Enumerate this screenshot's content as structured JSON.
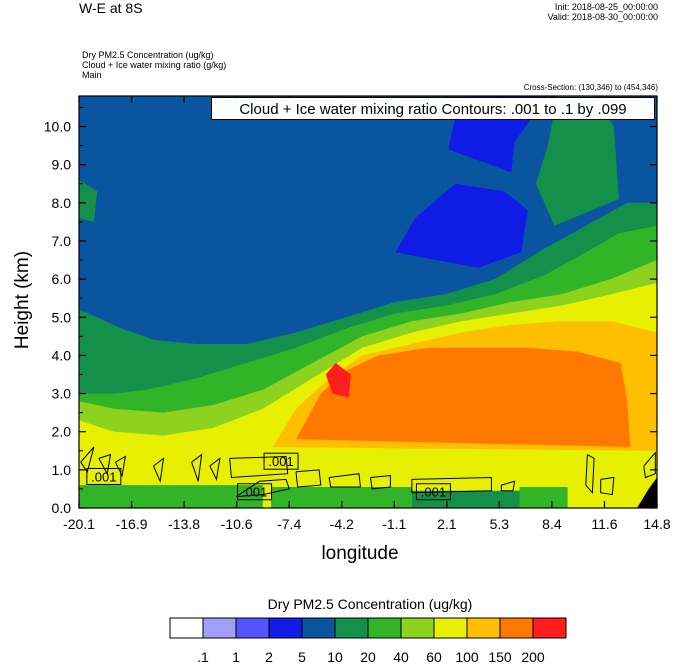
{
  "header": {
    "title": "W-E at 8S",
    "init": "Init: 2018-08-25_00:00:00",
    "valid": "Valid: 2018-08-30_00:00:00",
    "fields": [
      "Dry PM2.5 Concentration   (ug/kg)",
      "Cloud + Ice water mixing ratio   (g/kg)",
      "Main"
    ],
    "cross_section": "Cross-Section: (130,346) to (454,346)"
  },
  "chart_data": {
    "type": "heatmap",
    "title": "W-E at 8S",
    "xlabel": "longitude",
    "ylabel": "Height (km)",
    "contour_annotation": "Cloud + Ice water mixing ratio Contours: .001 to .1 by .099",
    "xlim": [
      -20.1,
      14.8
    ],
    "ylim": [
      0,
      10.8
    ],
    "x_ticks": [
      "-20.1",
      "-16.9",
      "-13.8",
      "-10.6",
      "-7.4",
      "-4.2",
      "-1.1",
      "2.1",
      "5.3",
      "8.4",
      "11.6",
      "14.8"
    ],
    "y_ticks": [
      "0.0",
      "1.0",
      "2.0",
      "3.0",
      "4.0",
      "5.0",
      "6.0",
      "7.0",
      "8.0",
      "9.0",
      "10.0"
    ],
    "y_tick_values": [
      0,
      1,
      2,
      3,
      4,
      5,
      6,
      7,
      8,
      9,
      10
    ],
    "colorbar": {
      "title": "Dry PM2.5 Concentration  (ug/kg)",
      "labels": [
        ".1",
        "1",
        "2",
        "5",
        "10",
        "20",
        "40",
        "60",
        "100",
        "150",
        "200"
      ],
      "colors": [
        "#ffffff",
        "#a0a0f8",
        "#5555ff",
        "#0f1ce6",
        "#0a55a0",
        "#15904a",
        "#32b428",
        "#8cd21e",
        "#e6f000",
        "#ffbe00",
        "#ff7800",
        "#ff1e1e"
      ]
    },
    "regions": [
      {
        "level": "5",
        "points": [
          [
            -20.1,
            0
          ],
          [
            14.8,
            0
          ],
          [
            14.8,
            10.8
          ],
          [
            -20.1,
            10.8
          ]
        ]
      },
      {
        "level": "10",
        "points": [
          [
            -20.1,
            0
          ],
          [
            14.8,
            0
          ],
          [
            14.8,
            8.0
          ],
          [
            13,
            8.0
          ],
          [
            10.5,
            7.4
          ],
          [
            8,
            6.8
          ],
          [
            5,
            6.0
          ],
          [
            2,
            5.6
          ],
          [
            -1,
            5.4
          ],
          [
            -4,
            5.0
          ],
          [
            -7,
            4.6
          ],
          [
            -10,
            4.3
          ],
          [
            -13,
            4.3
          ],
          [
            -15.5,
            4.4
          ],
          [
            -17.5,
            4.7
          ],
          [
            -19,
            5.0
          ],
          [
            -20.1,
            5.2
          ]
        ]
      },
      {
        "level": "10",
        "points": [
          [
            -20.1,
            7.6
          ],
          [
            -19.2,
            7.5
          ],
          [
            -19.0,
            8.3
          ],
          [
            -20.1,
            8.6
          ]
        ]
      },
      {
        "level": "10",
        "points": [
          [
            8.6,
            7.4
          ],
          [
            12.5,
            8.1
          ],
          [
            12.2,
            10.0
          ],
          [
            11.0,
            10.8
          ],
          [
            8.8,
            10.8
          ],
          [
            8.2,
            9.5
          ],
          [
            7.5,
            8.5
          ]
        ]
      },
      {
        "level": "2",
        "points": [
          [
            2.2,
            9.4
          ],
          [
            6.0,
            8.8
          ],
          [
            6.2,
            9.6
          ],
          [
            8.2,
            10.8
          ],
          [
            3.2,
            10.8
          ],
          [
            2.6,
            10.2
          ]
        ]
      },
      {
        "level": "2",
        "points": [
          [
            -1.0,
            6.7
          ],
          [
            4.0,
            6.3
          ],
          [
            6.6,
            6.7
          ],
          [
            7.0,
            7.8
          ],
          [
            5.6,
            8.3
          ],
          [
            2.6,
            8.5
          ],
          [
            0.2,
            7.6
          ]
        ]
      },
      {
        "level": "20",
        "points": [
          [
            -20.1,
            0
          ],
          [
            14.8,
            0
          ],
          [
            14.8,
            7.4
          ],
          [
            12.5,
            7.2
          ],
          [
            10.5,
            6.7
          ],
          [
            8,
            6.1
          ],
          [
            5,
            5.6
          ],
          [
            2,
            5.3
          ],
          [
            -1,
            5.1
          ],
          [
            -4,
            4.7
          ],
          [
            -7,
            4.2
          ],
          [
            -10,
            3.8
          ],
          [
            -13,
            3.4
          ],
          [
            -16,
            3.1
          ],
          [
            -18,
            3.0
          ],
          [
            -20.1,
            3.0
          ]
        ]
      },
      {
        "level": "40",
        "points": [
          [
            -20.1,
            0
          ],
          [
            14.8,
            0
          ],
          [
            14.8,
            6.5
          ],
          [
            12,
            6.0
          ],
          [
            9,
            5.6
          ],
          [
            6,
            5.4
          ],
          [
            3,
            5.1
          ],
          [
            0,
            4.9
          ],
          [
            -3,
            4.5
          ],
          [
            -6,
            3.8
          ],
          [
            -9,
            3.1
          ],
          [
            -12,
            2.7
          ],
          [
            -15,
            2.5
          ],
          [
            -18,
            2.6
          ],
          [
            -20.1,
            2.8
          ]
        ]
      },
      {
        "level": "60",
        "points": [
          [
            -20.1,
            0
          ],
          [
            14.8,
            0
          ],
          [
            14.8,
            5.9
          ],
          [
            12,
            5.6
          ],
          [
            9,
            5.3
          ],
          [
            6,
            5.1
          ],
          [
            3,
            4.9
          ],
          [
            0,
            4.6
          ],
          [
            -3,
            4.2
          ],
          [
            -6,
            3.4
          ],
          [
            -9,
            2.6
          ],
          [
            -12,
            2.1
          ],
          [
            -15,
            1.9
          ],
          [
            -18,
            2.0
          ],
          [
            -20.1,
            2.3
          ]
        ]
      },
      {
        "level": "100",
        "points": [
          [
            -8.4,
            1.6
          ],
          [
            14.8,
            1.5
          ],
          [
            14.8,
            4.6
          ],
          [
            12,
            4.9
          ],
          [
            9,
            4.9
          ],
          [
            6,
            4.8
          ],
          [
            3,
            4.6
          ],
          [
            0,
            4.3
          ],
          [
            -3,
            4.0
          ],
          [
            -5,
            3.4
          ],
          [
            -7,
            2.6
          ]
        ]
      },
      {
        "level": "150",
        "points": [
          [
            -7.0,
            1.8
          ],
          [
            13.2,
            1.6
          ],
          [
            13.0,
            2.8
          ],
          [
            12.6,
            3.8
          ],
          [
            10,
            4.1
          ],
          [
            7,
            4.2
          ],
          [
            4,
            4.2
          ],
          [
            1,
            4.2
          ],
          [
            -2,
            4.0
          ],
          [
            -4,
            3.6
          ],
          [
            -5.5,
            3.0
          ]
        ]
      },
      {
        "level": "200",
        "points": [
          [
            -4.8,
            3.0
          ],
          [
            -3.8,
            2.9
          ],
          [
            -3.7,
            3.5
          ],
          [
            -4.6,
            3.8
          ],
          [
            -5.2,
            3.5
          ]
        ]
      },
      {
        "level": "20",
        "points": [
          [
            -20.1,
            0
          ],
          [
            -9.0,
            0
          ],
          [
            -9.0,
            0.6
          ],
          [
            -14,
            0.6
          ],
          [
            -20.1,
            0.6
          ]
        ]
      },
      {
        "level": "20",
        "points": [
          [
            -8.5,
            0
          ],
          [
            0.0,
            0
          ],
          [
            0.0,
            0.55
          ],
          [
            -8.5,
            0.55
          ]
        ]
      },
      {
        "level": "10",
        "points": [
          [
            0.0,
            0
          ],
          [
            6.5,
            0
          ],
          [
            6.5,
            0.45
          ],
          [
            0.0,
            0.45
          ]
        ]
      },
      {
        "level": "20",
        "points": [
          [
            6.5,
            0
          ],
          [
            9.4,
            0
          ],
          [
            9.4,
            0.55
          ],
          [
            6.5,
            0.55
          ]
        ]
      },
      {
        "level": "60",
        "points": [
          [
            -20.1,
            0.9
          ],
          [
            -12.0,
            1.1
          ],
          [
            -12.0,
            1.8
          ],
          [
            -20.1,
            1.9
          ]
        ]
      }
    ],
    "contours": [
      {
        "level": 0.001,
        "points": [
          [
            -20.0,
            1.2
          ],
          [
            -19.2,
            1.6
          ],
          [
            -19.6,
            0.95
          ],
          [
            -20.0,
            1.2
          ]
        ]
      },
      {
        "level": 0.001,
        "points": [
          [
            -18.9,
            1.3
          ],
          [
            -18.2,
            1.4
          ],
          [
            -18.4,
            0.9
          ],
          [
            -18.9,
            1.3
          ]
        ]
      },
      {
        "level": 0.001,
        "points": [
          [
            -17.9,
            1.2
          ],
          [
            -17.3,
            1.35
          ],
          [
            -17.5,
            0.85
          ],
          [
            -17.9,
            1.2
          ]
        ]
      },
      {
        "level": 0.001,
        "points": [
          [
            -15.6,
            1.1
          ],
          [
            -15.0,
            1.3
          ],
          [
            -15.2,
            0.7
          ],
          [
            -15.6,
            1.1
          ]
        ]
      },
      {
        "level": 0.001,
        "points": [
          [
            -13.3,
            1.2
          ],
          [
            -12.7,
            1.4
          ],
          [
            -12.9,
            0.7
          ],
          [
            -13.3,
            1.2
          ]
        ]
      },
      {
        "level": 0.001,
        "points": [
          [
            -12.2,
            1.1
          ],
          [
            -11.6,
            1.3
          ],
          [
            -11.8,
            0.75
          ],
          [
            -12.2,
            1.1
          ]
        ]
      },
      {
        "level": 0.001,
        "points": [
          [
            -11.0,
            1.3
          ],
          [
            -7.6,
            1.35
          ],
          [
            -7.5,
            0.9
          ],
          [
            -10.9,
            0.8
          ],
          [
            -11.0,
            1.3
          ]
        ]
      },
      {
        "level": 0.001,
        "points": [
          [
            -10.6,
            0.3
          ],
          [
            -9.2,
            0.7
          ],
          [
            -7.6,
            0.75
          ],
          [
            -7.4,
            0.5
          ],
          [
            -9.0,
            0.35
          ],
          [
            -10.6,
            0.3
          ]
        ]
      },
      {
        "level": 0.001,
        "points": [
          [
            -7.0,
            0.95
          ],
          [
            -5.6,
            1.0
          ],
          [
            -5.5,
            0.6
          ],
          [
            -6.9,
            0.55
          ],
          [
            -7.0,
            0.95
          ]
        ]
      },
      {
        "level": 0.001,
        "points": [
          [
            -5.0,
            0.8
          ],
          [
            -3.2,
            0.9
          ],
          [
            -3.1,
            0.55
          ],
          [
            -4.9,
            0.55
          ],
          [
            -5.0,
            0.8
          ]
        ]
      },
      {
        "level": 0.001,
        "points": [
          [
            -2.5,
            0.8
          ],
          [
            -1.3,
            0.85
          ],
          [
            -1.3,
            0.55
          ],
          [
            -2.4,
            0.5
          ],
          [
            -2.5,
            0.8
          ]
        ]
      },
      {
        "level": 0.001,
        "points": [
          [
            0.0,
            0.75
          ],
          [
            4.8,
            0.8
          ],
          [
            4.8,
            0.45
          ],
          [
            0.0,
            0.4
          ],
          [
            0.0,
            0.75
          ]
        ]
      },
      {
        "level": 0.001,
        "points": [
          [
            5.4,
            0.6
          ],
          [
            6.2,
            0.7
          ],
          [
            6.1,
            0.45
          ],
          [
            5.4,
            0.45
          ],
          [
            5.4,
            0.6
          ]
        ]
      },
      {
        "level": 0.001,
        "points": [
          [
            10.6,
            1.4
          ],
          [
            11.0,
            1.3
          ],
          [
            10.9,
            0.4
          ],
          [
            10.5,
            0.6
          ],
          [
            10.6,
            1.4
          ]
        ]
      },
      {
        "level": 0.001,
        "points": [
          [
            11.4,
            0.75
          ],
          [
            12.2,
            0.8
          ],
          [
            12.1,
            0.35
          ],
          [
            11.4,
            0.4
          ],
          [
            11.4,
            0.75
          ]
        ]
      },
      {
        "level": 0.001,
        "points": [
          [
            14.0,
            1.1
          ],
          [
            14.7,
            1.45
          ],
          [
            14.7,
            0.9
          ],
          [
            14.1,
            0.8
          ],
          [
            14.0,
            1.1
          ]
        ]
      }
    ],
    "contour_labels": [
      {
        "text": ".001",
        "x": -18.6,
        "y": 0.8
      },
      {
        "text": ".001",
        "x": -7.9,
        "y": 1.2
      },
      {
        "text": ".001",
        "x": -9.5,
        "y": 0.4
      },
      {
        "text": ".001",
        "x": 1.3,
        "y": 0.4
      }
    ],
    "terrain": [
      [
        13.6,
        0
      ],
      [
        14.8,
        0
      ],
      [
        14.8,
        0.8
      ],
      [
        14.3,
        0.5
      ]
    ]
  }
}
